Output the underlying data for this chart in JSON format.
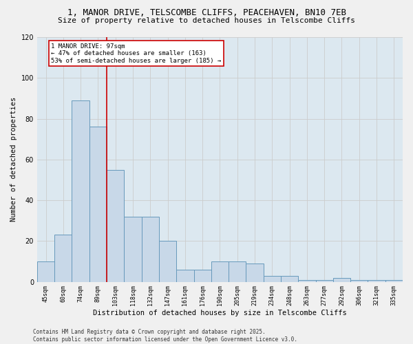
{
  "title_line1": "1, MANOR DRIVE, TELSCOMBE CLIFFS, PEACEHAVEN, BN10 7EB",
  "title_line2": "Size of property relative to detached houses in Telscombe Cliffs",
  "xlabel": "Distribution of detached houses by size in Telscombe Cliffs",
  "ylabel": "Number of detached properties",
  "categories": [
    "45sqm",
    "60sqm",
    "74sqm",
    "89sqm",
    "103sqm",
    "118sqm",
    "132sqm",
    "147sqm",
    "161sqm",
    "176sqm",
    "190sqm",
    "205sqm",
    "219sqm",
    "234sqm",
    "248sqm",
    "263sqm",
    "277sqm",
    "292sqm",
    "306sqm",
    "321sqm",
    "335sqm"
  ],
  "values": [
    10,
    23,
    89,
    76,
    55,
    32,
    32,
    20,
    6,
    6,
    10,
    10,
    9,
    3,
    3,
    1,
    1,
    2,
    1,
    1,
    1
  ],
  "bar_color": "#c8d8e8",
  "bar_edge_color": "#6699bb",
  "annotation_label": "1 MANOR DRIVE: 97sqm\n← 47% of detached houses are smaller (163)\n53% of semi-detached houses are larger (185) →",
  "ylim": [
    0,
    120
  ],
  "yticks": [
    0,
    20,
    40,
    60,
    80,
    100,
    120
  ],
  "grid_color": "#cccccc",
  "bg_color": "#dce8f0",
  "fig_bg_color": "#f0f0f0",
  "footer_line1": "Contains HM Land Registry data © Crown copyright and database right 2025.",
  "footer_line2": "Contains public sector information licensed under the Open Government Licence v3.0.",
  "annotation_box_color": "#cc0000",
  "vline_color": "#cc0000",
  "title_fontsize": 9,
  "subtitle_fontsize": 8,
  "tick_fontsize": 6,
  "ylabel_fontsize": 7.5,
  "xlabel_fontsize": 7.5,
  "footer_fontsize": 5.5,
  "annotation_fontsize": 6.5
}
